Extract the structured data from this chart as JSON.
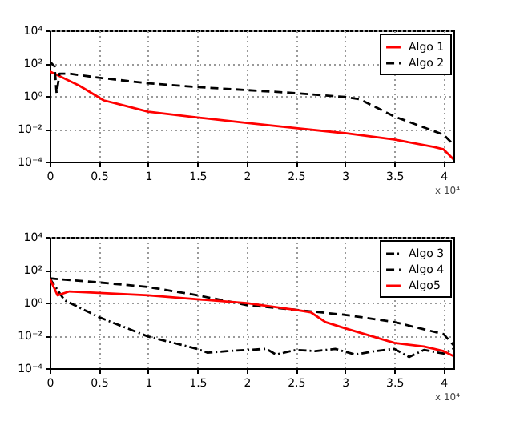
{
  "chart_data": [
    {
      "type": "line",
      "xlim": [
        0,
        4.1
      ],
      "xticks": [
        0,
        0.5,
        1,
        1.5,
        2,
        2.5,
        3,
        3.5,
        4
      ],
      "ylim": [
        0.0001,
        10000
      ],
      "log": true,
      "grid": true,
      "legend": "top right",
      "annotations": [
        "x 10⁴"
      ],
      "yticks": [
        {
          "value": 0.0001,
          "label": "10⁻⁴"
        },
        {
          "value": 0.01,
          "label": "10⁻²"
        },
        {
          "value": 1,
          "label": "10⁰"
        },
        {
          "value": 100,
          "label": "10²"
        },
        {
          "value": 10000,
          "label": "10⁴"
        }
      ],
      "series": [
        {
          "name": "Algo 1",
          "color": "#ff0000",
          "line_style": "solid",
          "x": [
            0,
            0.3,
            0.55,
            0.7,
            1,
            1.5,
            2,
            2.5,
            3,
            3.5,
            3.9,
            4,
            4.1
          ],
          "values": [
            32,
            4.3,
            0.54,
            0.32,
            0.11,
            0.049,
            0.023,
            0.011,
            0.0054,
            0.0022,
            0.00079,
            0.00056,
            0.00014
          ]
        },
        {
          "name": "Algo 2",
          "color": "#000000",
          "line_style": "dashed",
          "x": [
            0,
            0.05,
            0.07,
            0.1,
            0.2,
            0.5,
            1,
            1.5,
            2,
            2.5,
            3,
            3.15,
            3.5,
            4,
            4.1
          ],
          "values": [
            130,
            63,
            1.5,
            23,
            23,
            13,
            6,
            3.5,
            2.3,
            1.5,
            0.87,
            0.63,
            0.056,
            0.0044,
            0.0011
          ]
        }
      ]
    },
    {
      "type": "line",
      "xlim": [
        0,
        4.1
      ],
      "xticks": [
        0,
        0.5,
        1,
        1.5,
        2,
        2.5,
        3,
        3.5,
        4
      ],
      "ylim": [
        0.0001,
        10000
      ],
      "log": true,
      "grid": true,
      "legend": "top right",
      "annotations": [
        "x 10⁴"
      ],
      "yticks": [
        {
          "value": 0.0001,
          "label": "10⁻⁴"
        },
        {
          "value": 0.01,
          "label": "10⁻²"
        },
        {
          "value": 1,
          "label": "10⁰"
        },
        {
          "value": 100,
          "label": "10²"
        },
        {
          "value": 10000,
          "label": "10⁴"
        }
      ],
      "series": [
        {
          "name": "Algo 3",
          "color": "#000000",
          "line_style": "dashdot",
          "x": [
            0,
            0.15,
            0.5,
            1,
            1.5,
            1.6,
            1.8,
            2,
            2.2,
            2.3,
            2.5,
            2.7,
            2.9,
            3.1,
            3.3,
            3.5,
            3.65,
            3.8,
            4,
            4.1
          ],
          "values": [
            30,
            1.4,
            0.13,
            0.0085,
            0.0015,
            0.00089,
            0.0011,
            0.0013,
            0.0015,
            0.00068,
            0.0013,
            0.0011,
            0.0015,
            0.00068,
            0.0011,
            0.0015,
            0.00048,
            0.0013,
            0.00078,
            0.0015
          ]
        },
        {
          "name": "Algo 4",
          "color": "#000000",
          "line_style": "dashed",
          "x": [
            0,
            0.5,
            1,
            1.5,
            2,
            2.5,
            3,
            3.5,
            4,
            4.1
          ],
          "values": [
            30,
            17,
            8.9,
            2.8,
            0.71,
            0.36,
            0.18,
            0.065,
            0.012,
            0.0026
          ]
        },
        {
          "name": "Algo5",
          "color": "#ff0000",
          "line_style": "solid",
          "x": [
            0,
            0.08,
            0.2,
            0.5,
            1,
            1.5,
            2,
            2.5,
            2.65,
            2.8,
            3,
            3.5,
            3.8,
            4,
            4.1
          ],
          "values": [
            30,
            2.8,
            4.8,
            3.9,
            2.8,
            1.6,
            0.93,
            0.36,
            0.26,
            0.065,
            0.027,
            0.0035,
            0.0021,
            0.0011,
            0.00055
          ]
        }
      ]
    }
  ]
}
